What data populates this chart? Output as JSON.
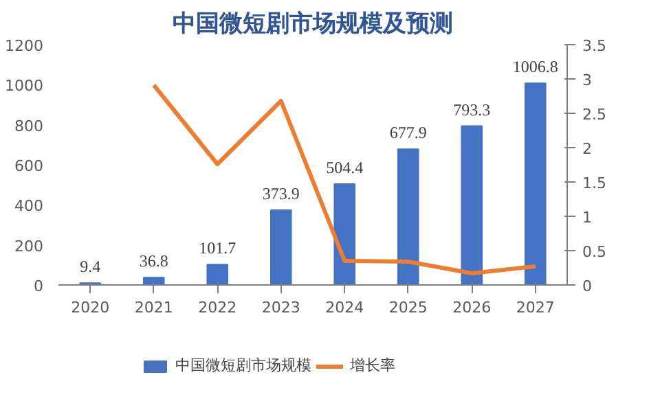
{
  "chart_data": {
    "type": "bar",
    "title": "中国微短剧市场规模及预测",
    "categories": [
      "2020",
      "2021",
      "2022",
      "2023",
      "2024",
      "2025",
      "2026",
      "2027"
    ],
    "series": [
      {
        "name": "中国微短剧市场规模",
        "color": "#4472c4",
        "values": [
          9.4,
          36.8,
          101.7,
          373.9,
          504.4,
          677.9,
          793.3,
          1006.8
        ],
        "value_labels": [
          "9.4",
          "36.8",
          "101.7",
          "373.9",
          "504.4",
          "677.9",
          "793.3",
          "1006.8"
        ]
      },
      {
        "name": "增长率",
        "type": "line",
        "axis": "y2",
        "color": "#ed7d31",
        "values": [
          null,
          2.91,
          1.76,
          2.68,
          0.35,
          0.34,
          0.17,
          0.27
        ]
      }
    ],
    "ylim": [
      0,
      1200
    ],
    "yticks": [
      0,
      200,
      400,
      600,
      800,
      1000,
      1200
    ],
    "y2lim": [
      0,
      3.5
    ],
    "y2ticks": [
      0,
      0.5,
      1,
      1.5,
      2,
      2.5,
      3,
      3.5
    ],
    "legend": "bottom"
  }
}
